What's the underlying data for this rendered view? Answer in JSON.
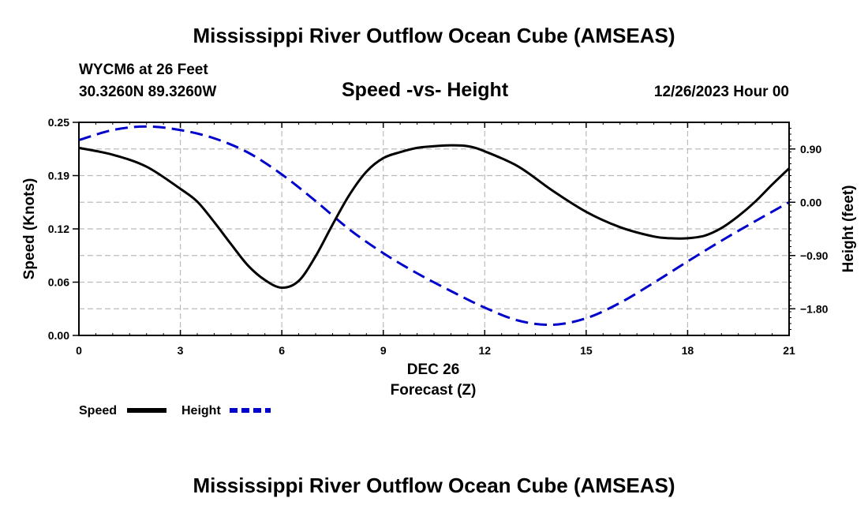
{
  "header": {
    "title": "Mississippi River Outflow Ocean Cube (AMSEAS)",
    "station": "WYCM6 at 26 Feet",
    "coords": "30.3260N  89.3260W",
    "subtitle": "Speed -vs- Height",
    "datetime": "12/26/2023 Hour 00"
  },
  "footer": {
    "title": "Mississippi River Outflow Ocean Cube (AMSEAS)"
  },
  "colors": {
    "speed": "#000000",
    "height": "#0000cc",
    "grid": "#bbbbbb"
  },
  "chart_data": {
    "type": "line",
    "title": "Speed -vs- Height",
    "xlabel": "Forecast (Z)",
    "xlabel_date": "DEC 26",
    "ylabel": "Speed (Knots)",
    "y2label": "Height (feet)",
    "xlim": [
      0,
      21
    ],
    "ylim": [
      0,
      0.25
    ],
    "y2lim": [
      -2.25,
      1.35
    ],
    "x_ticks": [
      0,
      3,
      6,
      9,
      12,
      15,
      18,
      21
    ],
    "x_tick_labels": [
      "0",
      "3",
      "6",
      "9",
      "12",
      "15",
      "18",
      "21"
    ],
    "y_ticks": [
      0,
      0.0625,
      0.125,
      0.1875,
      0.25
    ],
    "y_tick_labels": [
      "0.00",
      "0.06",
      "0.12",
      "0.19",
      "0.25"
    ],
    "y2_ticks": [
      0.9,
      0,
      -0.9,
      -1.8
    ],
    "y2_tick_labels": [
      "0.90",
      "0.00",
      "−0.90",
      "−1.80"
    ],
    "grid": true,
    "legend_position": "bottom-left",
    "series": [
      {
        "name": "Speed",
        "axis": "left",
        "style": "solid",
        "x": [
          0,
          1,
          2,
          3,
          3.5,
          4,
          4.5,
          5,
          5.5,
          6,
          6.5,
          7,
          7.5,
          8,
          8.5,
          9,
          9.5,
          10,
          10.5,
          11,
          11.5,
          12,
          13,
          14,
          15,
          16,
          17,
          17.5,
          18,
          18.5,
          19,
          19.5,
          20,
          20.5,
          21
        ],
        "values": [
          0.22,
          0.212,
          0.198,
          0.172,
          0.157,
          0.133,
          0.107,
          0.082,
          0.065,
          0.056,
          0.064,
          0.093,
          0.13,
          0.165,
          0.192,
          0.208,
          0.215,
          0.22,
          0.222,
          0.223,
          0.222,
          0.216,
          0.198,
          0.17,
          0.145,
          0.127,
          0.116,
          0.114,
          0.114,
          0.117,
          0.126,
          0.14,
          0.157,
          0.177,
          0.196
        ]
      },
      {
        "name": "Height",
        "axis": "right",
        "style": "dashed",
        "x": [
          0,
          1,
          2,
          3,
          4,
          5,
          6,
          7,
          8,
          9,
          10,
          11,
          12,
          13,
          14,
          15,
          16,
          17,
          18,
          19,
          20,
          21
        ],
        "values": [
          1.05,
          1.22,
          1.28,
          1.22,
          1.08,
          0.84,
          0.47,
          0.02,
          -0.46,
          -0.86,
          -1.2,
          -1.5,
          -1.78,
          -2.0,
          -2.07,
          -1.96,
          -1.7,
          -1.36,
          -1.0,
          -0.65,
          -0.32,
          0.0
        ]
      }
    ]
  }
}
